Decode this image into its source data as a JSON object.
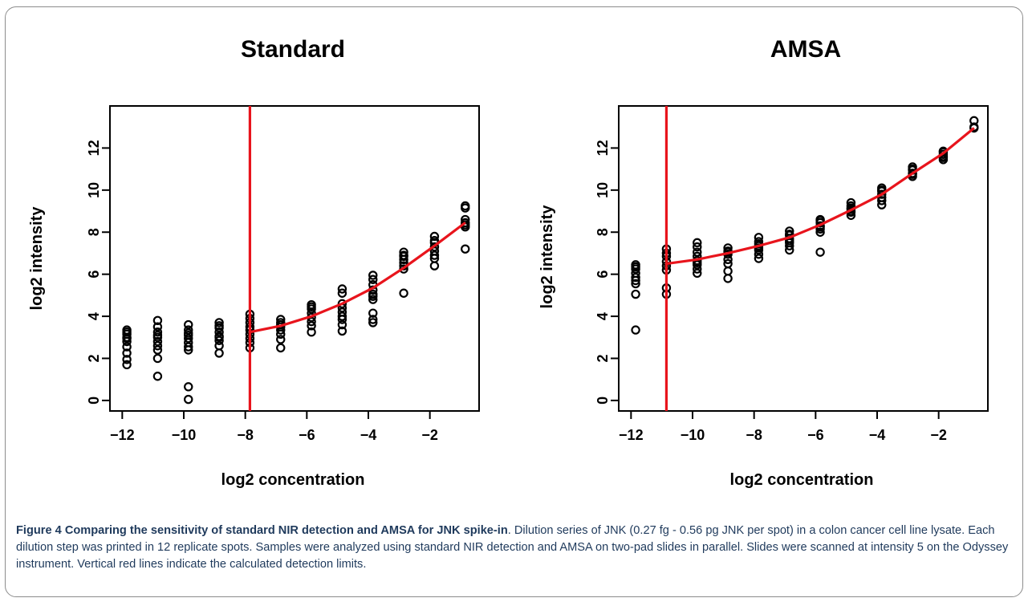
{
  "chart_data": [
    {
      "type": "scatter",
      "title": "Standard",
      "xlabel": "log2 concentration",
      "ylabel": "log2 intensity",
      "xlim": [
        -12.4,
        -0.4
      ],
      "ylim": [
        -0.5,
        14.0
      ],
      "xticks": [
        -12,
        -10,
        -8,
        -6,
        -4,
        -2
      ],
      "xtick_labels": [
        "−12",
        "−10",
        "−8",
        "−6",
        "−4",
        "−2"
      ],
      "yticks": [
        0,
        2,
        4,
        6,
        8,
        10,
        12
      ],
      "ytick_labels": [
        "0",
        "2",
        "4",
        "6",
        "8",
        "10",
        "12"
      ],
      "points": {
        "x": [
          -11.85,
          -11.85,
          -11.85,
          -11.85,
          -11.85,
          -11.85,
          -11.85,
          -11.85,
          -11.85,
          -11.85,
          -10.85,
          -10.85,
          -10.85,
          -10.85,
          -10.85,
          -10.85,
          -10.85,
          -10.85,
          -10.85,
          -10.85,
          -9.85,
          -9.85,
          -9.85,
          -9.85,
          -9.85,
          -9.85,
          -9.85,
          -9.85,
          -9.85,
          -9.85,
          -8.85,
          -8.85,
          -8.85,
          -8.85,
          -8.85,
          -8.85,
          -8.85,
          -8.85,
          -8.85,
          -7.85,
          -7.85,
          -7.85,
          -7.85,
          -7.85,
          -7.85,
          -7.85,
          -7.85,
          -7.85,
          -6.85,
          -6.85,
          -6.85,
          -6.85,
          -6.85,
          -6.85,
          -6.85,
          -6.85,
          -5.85,
          -5.85,
          -5.85,
          -5.85,
          -5.85,
          -5.85,
          -5.85,
          -5.85,
          -4.85,
          -4.85,
          -4.85,
          -4.85,
          -4.85,
          -4.85,
          -4.85,
          -4.85,
          -4.85,
          -3.85,
          -3.85,
          -3.85,
          -3.85,
          -3.85,
          -3.85,
          -3.85,
          -3.85,
          -3.85,
          -3.85,
          -2.85,
          -2.85,
          -2.85,
          -2.85,
          -2.85,
          -2.85,
          -2.85,
          -2.85,
          -1.85,
          -1.85,
          -1.85,
          -1.85,
          -1.85,
          -1.85,
          -1.85,
          -1.85,
          -0.85,
          -0.85,
          -0.85,
          -0.85,
          -0.85,
          -0.85,
          -0.85
        ],
        "y": [
          3.35,
          3.15,
          3.0,
          2.8,
          2.55,
          2.25,
          1.95,
          1.7,
          3.25,
          2.95,
          3.8,
          3.5,
          3.25,
          3.0,
          2.8,
          2.6,
          2.4,
          2.0,
          1.15,
          3.1,
          3.6,
          3.35,
          3.1,
          2.95,
          2.75,
          2.55,
          2.4,
          0.65,
          0.05,
          3.2,
          3.7,
          3.45,
          3.25,
          3.05,
          2.85,
          2.6,
          2.25,
          3.55,
          3.0,
          4.1,
          3.9,
          3.7,
          3.5,
          3.35,
          3.15,
          2.95,
          2.75,
          2.5,
          3.85,
          3.7,
          3.5,
          3.35,
          3.15,
          2.9,
          2.5,
          3.6,
          4.55,
          4.35,
          4.15,
          3.95,
          3.75,
          3.55,
          3.25,
          4.45,
          5.3,
          5.1,
          4.6,
          4.4,
          4.2,
          3.85,
          3.6,
          3.3,
          4.0,
          5.95,
          5.75,
          5.5,
          5.25,
          4.8,
          4.15,
          3.85,
          3.7,
          5.05,
          4.95,
          7.05,
          6.9,
          6.7,
          6.55,
          6.4,
          6.25,
          5.1,
          6.85,
          7.8,
          7.6,
          7.3,
          7.1,
          6.9,
          6.75,
          6.4,
          7.5,
          9.25,
          9.15,
          8.6,
          8.45,
          8.35,
          8.25,
          7.2
        ]
      },
      "fit_line": {
        "x": [
          -7.85,
          -6.85,
          -5.85,
          -4.85,
          -3.85,
          -2.85,
          -1.85,
          -0.85
        ],
        "y": [
          3.25,
          3.55,
          4.0,
          4.6,
          5.35,
          6.3,
          7.35,
          8.45
        ]
      },
      "detection_limit_x": -7.85
    },
    {
      "type": "scatter",
      "title": "AMSA",
      "xlabel": "log2 concentration",
      "ylabel": "log2 intensity",
      "xlim": [
        -12.4,
        -0.4
      ],
      "ylim": [
        -0.5,
        14.0
      ],
      "xticks": [
        -12,
        -10,
        -8,
        -6,
        -4,
        -2
      ],
      "xtick_labels": [
        "−12",
        "−10",
        "−8",
        "−6",
        "−4",
        "−2"
      ],
      "yticks": [
        0,
        2,
        4,
        6,
        8,
        10,
        12
      ],
      "ytick_labels": [
        "0",
        "2",
        "4",
        "6",
        "8",
        "10",
        "12"
      ],
      "points": {
        "x": [
          -11.85,
          -11.85,
          -11.85,
          -11.85,
          -11.85,
          -11.85,
          -11.85,
          -11.85,
          -11.85,
          -10.85,
          -10.85,
          -10.85,
          -10.85,
          -10.85,
          -10.85,
          -10.85,
          -10.85,
          -9.85,
          -9.85,
          -9.85,
          -9.85,
          -9.85,
          -9.85,
          -9.85,
          -9.85,
          -9.85,
          -8.85,
          -8.85,
          -8.85,
          -8.85,
          -8.85,
          -8.85,
          -8.85,
          -8.85,
          -7.85,
          -7.85,
          -7.85,
          -7.85,
          -7.85,
          -7.85,
          -7.85,
          -7.85,
          -6.85,
          -6.85,
          -6.85,
          -6.85,
          -6.85,
          -6.85,
          -6.85,
          -6.85,
          -5.85,
          -5.85,
          -5.85,
          -5.85,
          -5.85,
          -5.85,
          -5.85,
          -5.85,
          -4.85,
          -4.85,
          -4.85,
          -4.85,
          -4.85,
          -4.85,
          -4.85,
          -3.85,
          -3.85,
          -3.85,
          -3.85,
          -3.85,
          -3.85,
          -3.85,
          -2.85,
          -2.85,
          -2.85,
          -2.85,
          -2.85,
          -2.85,
          -1.85,
          -1.85,
          -1.85,
          -1.85,
          -1.85,
          -1.85,
          -0.85,
          -0.85,
          -0.85
        ],
        "y": [
          6.45,
          6.25,
          6.05,
          5.85,
          5.7,
          5.55,
          5.05,
          3.35,
          6.35,
          7.2,
          7.0,
          6.85,
          6.6,
          6.4,
          6.2,
          5.35,
          5.05,
          7.5,
          7.3,
          7.05,
          6.85,
          6.65,
          6.45,
          6.25,
          6.05,
          6.55,
          7.25,
          7.1,
          6.95,
          6.7,
          6.5,
          6.15,
          5.8,
          7.05,
          7.75,
          7.55,
          7.35,
          7.15,
          6.95,
          6.75,
          7.45,
          7.25,
          8.05,
          7.85,
          7.7,
          7.5,
          7.35,
          7.15,
          7.9,
          7.6,
          8.6,
          8.45,
          8.3,
          8.15,
          8.0,
          7.05,
          8.55,
          8.25,
          9.4,
          9.25,
          9.1,
          8.95,
          8.8,
          9.15,
          9.0,
          10.1,
          9.95,
          9.8,
          9.65,
          9.5,
          9.3,
          10.0,
          11.1,
          10.95,
          10.8,
          10.65,
          11.0,
          10.75,
          11.85,
          11.7,
          11.55,
          11.45,
          11.8,
          11.6,
          13.3,
          13.0,
          12.95
        ]
      },
      "fit_line": {
        "x": [
          -10.85,
          -9.85,
          -8.85,
          -7.85,
          -6.85,
          -5.85,
          -4.85,
          -3.85,
          -2.85,
          -1.85,
          -0.85
        ],
        "y": [
          6.5,
          6.7,
          7.0,
          7.35,
          7.75,
          8.35,
          9.05,
          9.8,
          10.8,
          11.75,
          12.95
        ]
      },
      "detection_limit_x": -10.85
    }
  ],
  "caption": {
    "figure_label": "Figure 4",
    "title": "Comparing the sensitivity of standard NIR detection and AMSA for JNK spike-in",
    "body": ". Dilution series of JNK (0.27 fg - 0.56 pg JNK per spot) in a colon cancer cell line lysate. Each dilution step was printed in 12 replicate spots. Samples were analyzed using standard NIR detection and AMSA on two-pad slides in parallel. Slides were scanned at intensity 5 on the Odyssey instrument. Vertical red lines indicate the calculated detection limits."
  },
  "colors": {
    "fit_line": "#e8141c",
    "detection_line": "#e8141c",
    "points": "#000000",
    "caption_text": "#1f3a5c"
  }
}
